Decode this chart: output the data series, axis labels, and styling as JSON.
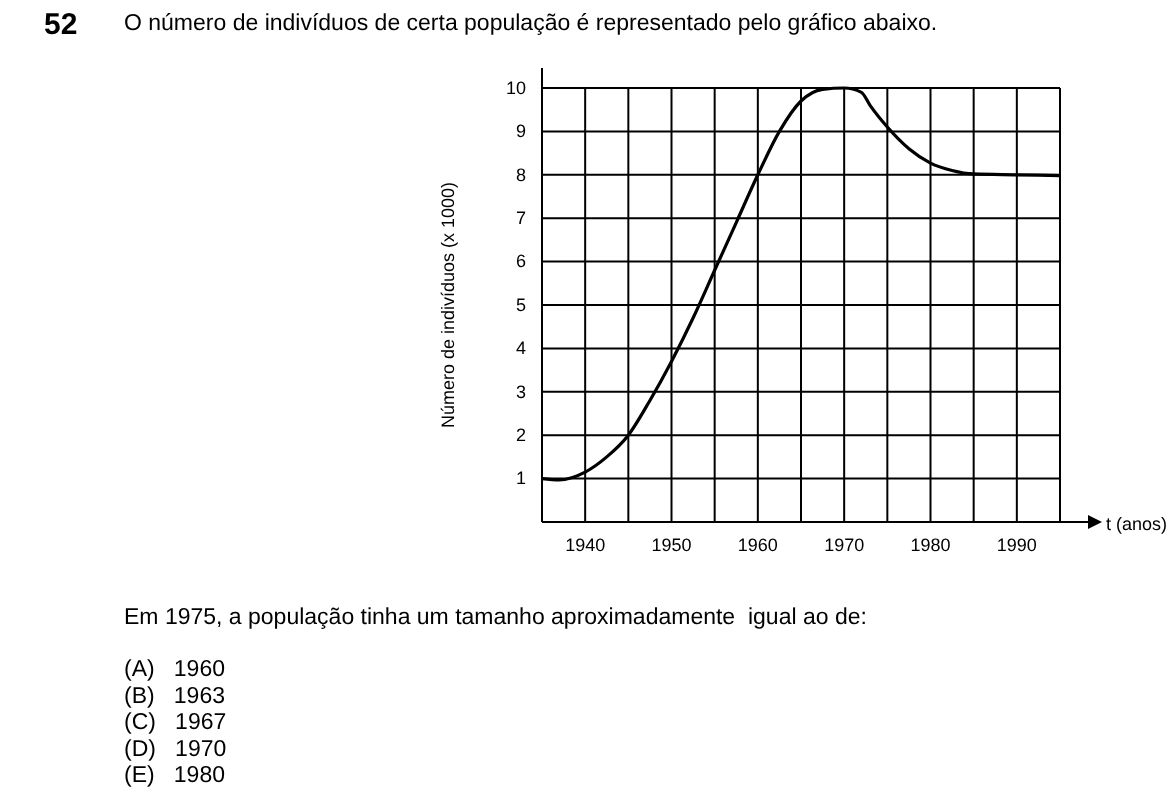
{
  "chart_data": {
    "type": "line",
    "title": "O número de indivíduos de certa população é representado pelo gráfico abaixo.",
    "xlabel": "t (anos)",
    "ylabel": "Número de indivíduos (x 1000)",
    "x": [
      1935,
      1937,
      1940,
      1942.5,
      1945,
      1947.5,
      1950,
      1952.5,
      1955,
      1957.5,
      1960,
      1962.5,
      1965,
      1967.5,
      1970,
      1972,
      1973,
      1975,
      1977.5,
      1980,
      1982.5,
      1985,
      1990,
      1995
    ],
    "series": [
      {
        "color": "#000000",
        "values": [
          1.0,
          0.97,
          1.15,
          1.5,
          2.0,
          2.8,
          3.7,
          4.7,
          5.8,
          6.9,
          8.0,
          9.0,
          9.7,
          9.97,
          10.0,
          9.9,
          9.6,
          9.1,
          8.6,
          8.27,
          8.1,
          8.02,
          8.0,
          7.98
        ]
      }
    ],
    "xlim": [
      1935,
      1995
    ],
    "xticks": [
      {
        "value": 1935,
        "label": null
      },
      1940,
      {
        "value": 1945,
        "label": null
      },
      1950,
      {
        "value": 1955,
        "label": null
      },
      1960,
      {
        "value": 1965,
        "label": null
      },
      1970,
      {
        "value": 1975,
        "label": null
      },
      1980,
      {
        "value": 1985,
        "label": null
      },
      1990,
      {
        "value": 1995,
        "label": null
      }
    ],
    "ylim": [
      0,
      10
    ],
    "yticks": [
      {
        "value": 0,
        "label": null
      },
      1,
      2,
      3,
      4,
      5,
      6,
      7,
      8,
      9,
      10
    ],
    "grid": true,
    "marker": "none",
    "line_style": "solid",
    "annotations": [
      "52",
      "Em 1975, a população tinha um tamanho aproximadamente  igual ao de:",
      "(A)   1960",
      "(B)   1963",
      "(C)   1967",
      "(D)   1970",
      "(E)   1980"
    ]
  }
}
